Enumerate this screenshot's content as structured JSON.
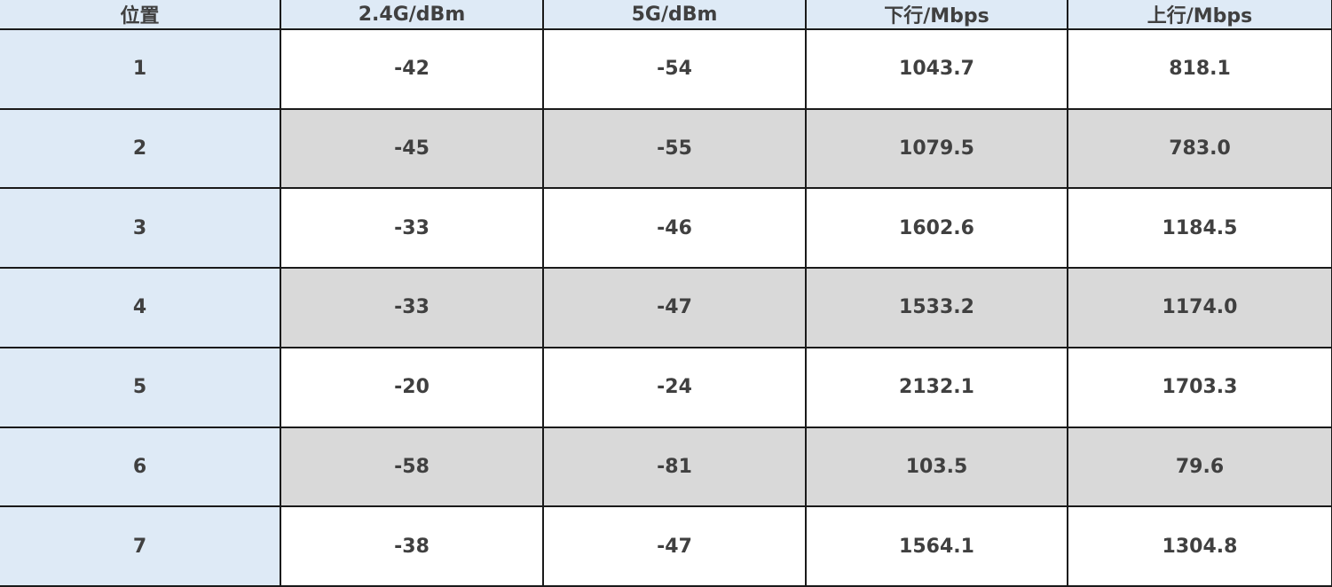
{
  "table": {
    "headers": [
      "位置",
      "2.4G/dBm",
      "5G/dBm",
      "下行/Mbps",
      "上行/Mbps"
    ],
    "rows": [
      [
        "1",
        "-42",
        "-54",
        "1043.7",
        "818.1"
      ],
      [
        "2",
        "-45",
        "-55",
        "1079.5",
        "783.0"
      ],
      [
        "3",
        "-33",
        "-46",
        "1602.6",
        "1184.5"
      ],
      [
        "4",
        "-33",
        "-47",
        "1533.2",
        "1174.0"
      ],
      [
        "5",
        "-20",
        "-24",
        "2132.1",
        "1703.3"
      ],
      [
        "6",
        "-58",
        "-81",
        "103.5",
        "79.6"
      ],
      [
        "7",
        "-38",
        "-47",
        "1564.1",
        "1304.8"
      ]
    ]
  }
}
